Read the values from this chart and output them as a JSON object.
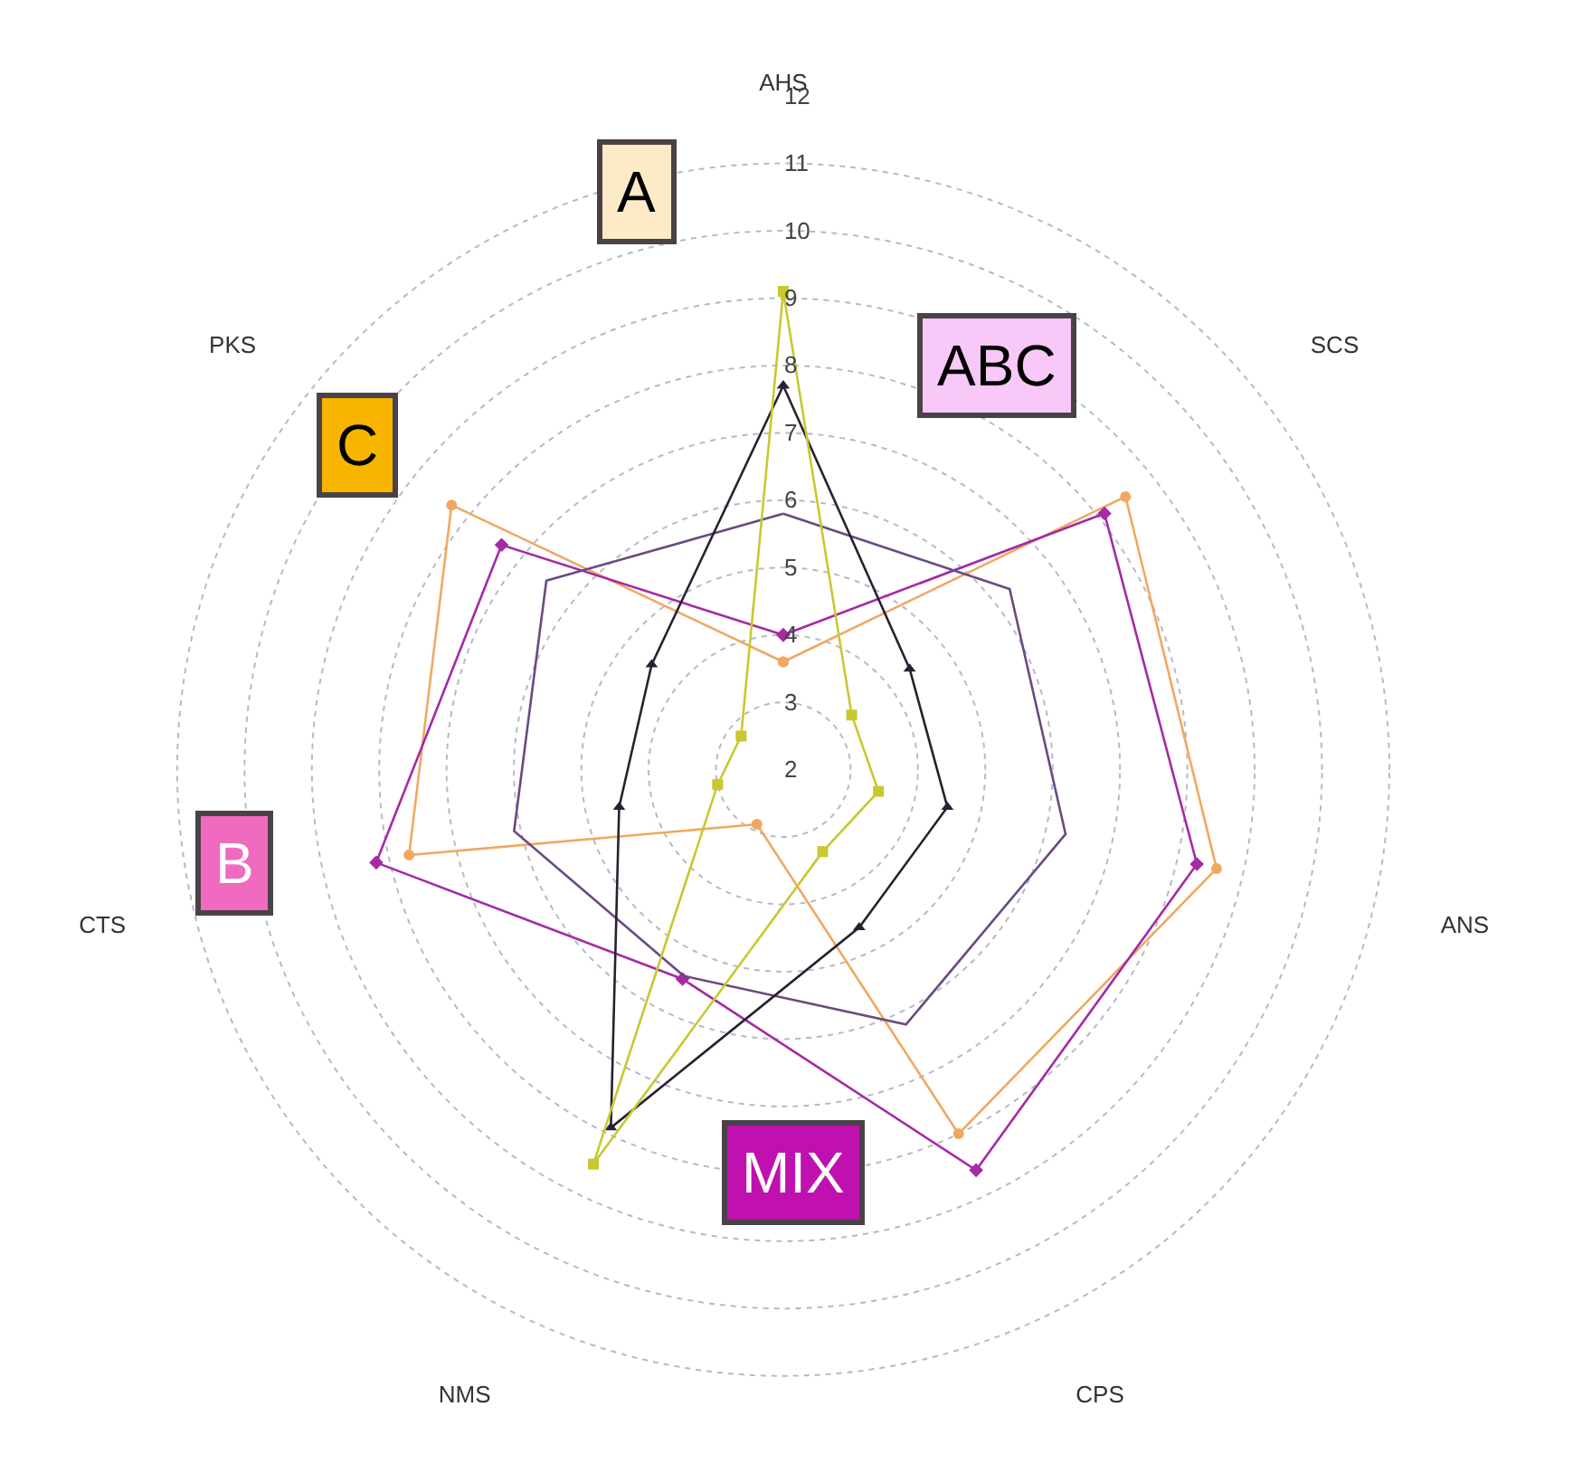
{
  "chart_data": {
    "type": "radar",
    "categories": [
      "AHS",
      "SCS",
      "ANS",
      "CPS",
      "NMS",
      "CTS",
      "PKS"
    ],
    "ylim": [
      2,
      12
    ],
    "yticks": [
      2,
      3,
      4,
      5,
      6,
      7,
      8,
      9,
      10,
      11,
      12
    ],
    "grid": true,
    "line_style": "solid",
    "series": [
      {
        "color": "#f0a860",
        "marker": "circle",
        "values": [
          3.6,
          8.5,
          8.6,
          8.0,
          2.9,
          7.7,
          8.3
        ]
      },
      {
        "color": "#a52aa5",
        "marker": "diamond",
        "values": [
          4.0,
          8.1,
          8.3,
          8.6,
          5.45,
          8.2,
          7.35
        ]
      },
      {
        "color": "#6a4a80",
        "marker": "none",
        "values": [
          5.8,
          6.3,
          6.3,
          6.2,
          5.4,
          6.1,
          6.5
        ]
      },
      {
        "color": "#2a2030",
        "marker": "triangle",
        "values": [
          7.7,
          4.4,
          4.5,
          4.6,
          7.9,
          4.5,
          4.5
        ]
      },
      {
        "color": "#c8c830",
        "marker": "square",
        "values": [
          9.1,
          3.3,
          3.45,
          3.35,
          8.5,
          3.0,
          2.8
        ]
      }
    ],
    "annotations": [
      "A",
      "ABC",
      "C",
      "B",
      "MIX"
    ]
  }
}
